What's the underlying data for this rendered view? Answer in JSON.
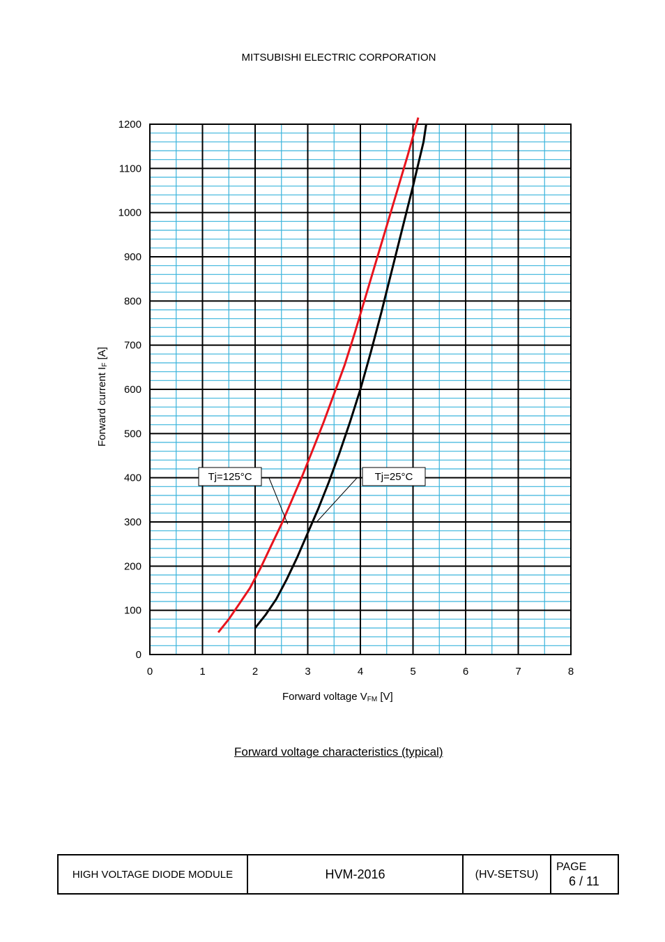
{
  "header": {
    "company": "MITSUBISHI ELECTRIC CORPORATION"
  },
  "chart_data": {
    "type": "line",
    "xlabel": "Forward voltage",
    "xlabel_symbol": "V",
    "xlabel_sub": "FM",
    "xlabel_unit": "[V]",
    "ylabel": "Forward current",
    "ylabel_symbol": "I",
    "ylabel_sub": "F",
    "ylabel_unit": "[A]",
    "xlim": [
      0,
      8
    ],
    "ylim": [
      0,
      1200
    ],
    "x_ticks": [
      "0",
      "1",
      "2",
      "3",
      "4",
      "5",
      "6",
      "7",
      "8"
    ],
    "y_ticks": [
      "0",
      "100",
      "200",
      "300",
      "400",
      "500",
      "600",
      "700",
      "800",
      "900",
      "1000",
      "1100",
      "1200"
    ],
    "grid": true,
    "series": [
      {
        "name": "Tj=125°C",
        "color": "#e8141e",
        "x": [
          1.3,
          1.5,
          1.7,
          1.9,
          2.1,
          2.3,
          2.5,
          2.7,
          2.9,
          3.1,
          3.3,
          3.5,
          3.7,
          3.9,
          4.1,
          4.3,
          4.5,
          4.7,
          4.9,
          5.1
        ],
        "y": [
          50,
          80,
          115,
          150,
          195,
          245,
          295,
          350,
          405,
          465,
          525,
          590,
          655,
          730,
          810,
          890,
          970,
          1050,
          1130,
          1215
        ]
      },
      {
        "name": "Tj=25°C",
        "color": "#000000",
        "x": [
          2.0,
          2.2,
          2.4,
          2.6,
          2.8,
          3.0,
          3.2,
          3.4,
          3.6,
          3.8,
          4.0,
          4.2,
          4.4,
          4.6,
          4.8,
          5.0,
          5.2,
          5.25
        ],
        "y": [
          60,
          90,
          125,
          170,
          220,
          275,
          330,
          390,
          455,
          525,
          600,
          685,
          775,
          870,
          965,
          1060,
          1160,
          1200
        ]
      }
    ]
  },
  "caption": "Forward voltage characteristics (typical)",
  "footer": {
    "product": "HIGH VOLTAGE DIODE MODULE",
    "model": "HVM-2016",
    "code": "(HV-SETSU)",
    "page_label": "PAGE",
    "page_value": "6 / 11"
  }
}
